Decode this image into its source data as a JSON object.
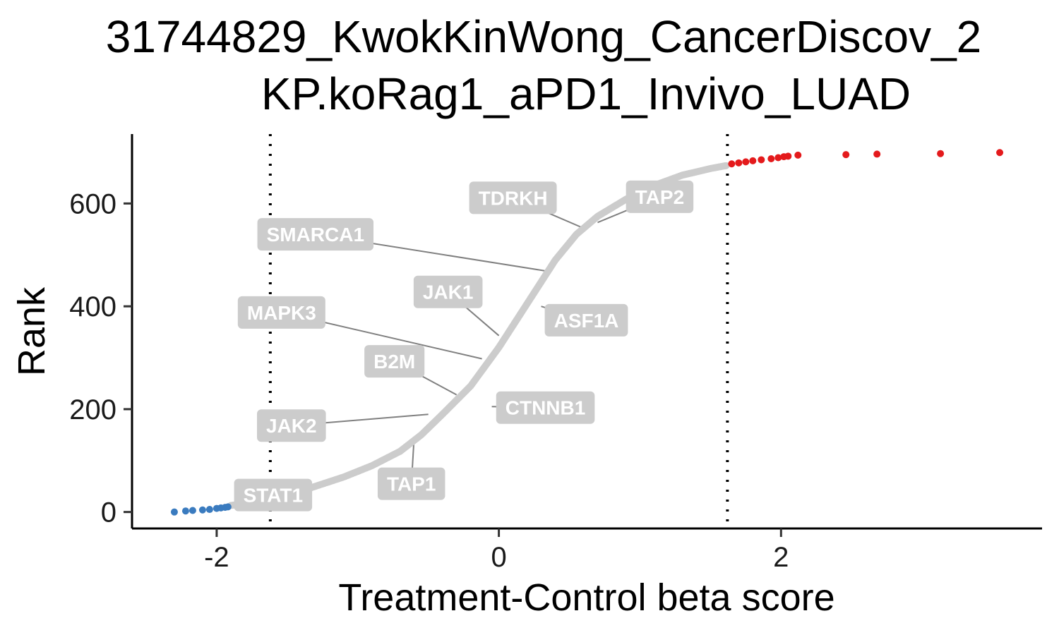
{
  "chart_data": {
    "type": "scatter",
    "title": [
      "31744829_KwokKinWong_CancerDiscov_2",
      "KP.koRag1_aPD1_Invivo_LUAD"
    ],
    "xlabel": "Treatment-Control beta score",
    "ylabel": "Rank",
    "xlim": [
      -2.6,
      3.85
    ],
    "ylim": [
      -32,
      735
    ],
    "xticks": [
      -2,
      0,
      2
    ],
    "yticks": [
      0,
      200,
      400,
      600
    ],
    "thresholds": [
      -1.62,
      1.62
    ],
    "grid": false,
    "legend": "none",
    "colors": {
      "negative": "#3a7bbf",
      "neutral": "#cccccc",
      "positive": "#e41a1c",
      "label_bg": "#cccccc",
      "label_text": "#ffffff",
      "connector": "#808080",
      "threshold_line": "#000000"
    },
    "curve_knots": [
      [
        -2.3,
        0
      ],
      [
        -2.2,
        3
      ],
      [
        -2.1,
        6
      ],
      [
        -2.0,
        9
      ],
      [
        -1.92,
        12
      ],
      [
        -1.7,
        20
      ],
      [
        -1.5,
        32
      ],
      [
        -1.3,
        50
      ],
      [
        -1.1,
        68
      ],
      [
        -0.9,
        90
      ],
      [
        -0.7,
        118
      ],
      [
        -0.55,
        150
      ],
      [
        -0.4,
        190
      ],
      [
        -0.2,
        245
      ],
      [
        0.0,
        320
      ],
      [
        0.2,
        405
      ],
      [
        0.4,
        490
      ],
      [
        0.55,
        540
      ],
      [
        0.7,
        575
      ],
      [
        0.9,
        608
      ],
      [
        1.1,
        635
      ],
      [
        1.3,
        655
      ],
      [
        1.5,
        668
      ],
      [
        1.62,
        674
      ]
    ],
    "negative_points": [
      {
        "x": -2.3,
        "y": 0
      },
      {
        "x": -2.22,
        "y": 2
      },
      {
        "x": -2.17,
        "y": 3
      },
      {
        "x": -2.1,
        "y": 4
      },
      {
        "x": -2.05,
        "y": 5
      },
      {
        "x": -2.0,
        "y": 7
      },
      {
        "x": -1.97,
        "y": 8
      },
      {
        "x": -1.94,
        "y": 9
      },
      {
        "x": -1.92,
        "y": 10
      }
    ],
    "positive_points": [
      {
        "x": 1.65,
        "y": 677
      },
      {
        "x": 1.7,
        "y": 679
      },
      {
        "x": 1.75,
        "y": 681
      },
      {
        "x": 1.8,
        "y": 683
      },
      {
        "x": 1.86,
        "y": 685
      },
      {
        "x": 1.93,
        "y": 687
      },
      {
        "x": 1.98,
        "y": 689
      },
      {
        "x": 2.02,
        "y": 691
      },
      {
        "x": 2.05,
        "y": 692
      },
      {
        "x": 2.12,
        "y": 694
      },
      {
        "x": 2.46,
        "y": 695
      },
      {
        "x": 2.68,
        "y": 696
      },
      {
        "x": 3.13,
        "y": 697
      },
      {
        "x": 3.55,
        "y": 699
      }
    ],
    "labeled_genes": [
      {
        "gene": "TDRKH",
        "x": 0.6,
        "y": 552,
        "lx": 0.1,
        "ly": 611
      },
      {
        "gene": "TAP2",
        "x": 0.7,
        "y": 563,
        "lx": 1.14,
        "ly": 613
      },
      {
        "gene": "SMARCA1",
        "x": 0.35,
        "y": 468,
        "lx": -1.3,
        "ly": 540
      },
      {
        "gene": "JAK1",
        "x": 0.0,
        "y": 343,
        "lx": -0.36,
        "ly": 428
      },
      {
        "gene": "MAPK3",
        "x": -0.12,
        "y": 298,
        "lx": -1.54,
        "ly": 388
      },
      {
        "gene": "ASF1A",
        "x": 0.3,
        "y": 400,
        "lx": 0.62,
        "ly": 373
      },
      {
        "gene": "B2M",
        "x": -0.3,
        "y": 228,
        "lx": -0.74,
        "ly": 293
      },
      {
        "gene": "CTNNB1",
        "x": -0.05,
        "y": 205,
        "lx": 0.33,
        "ly": 203
      },
      {
        "gene": "JAK2",
        "x": -0.5,
        "y": 190,
        "lx": -1.47,
        "ly": 168
      },
      {
        "gene": "TAP1",
        "x": -0.6,
        "y": 147,
        "lx": -0.62,
        "ly": 55
      },
      {
        "gene": "STAT1",
        "x": -1.25,
        "y": 50,
        "lx": -1.6,
        "ly": 33
      }
    ]
  }
}
